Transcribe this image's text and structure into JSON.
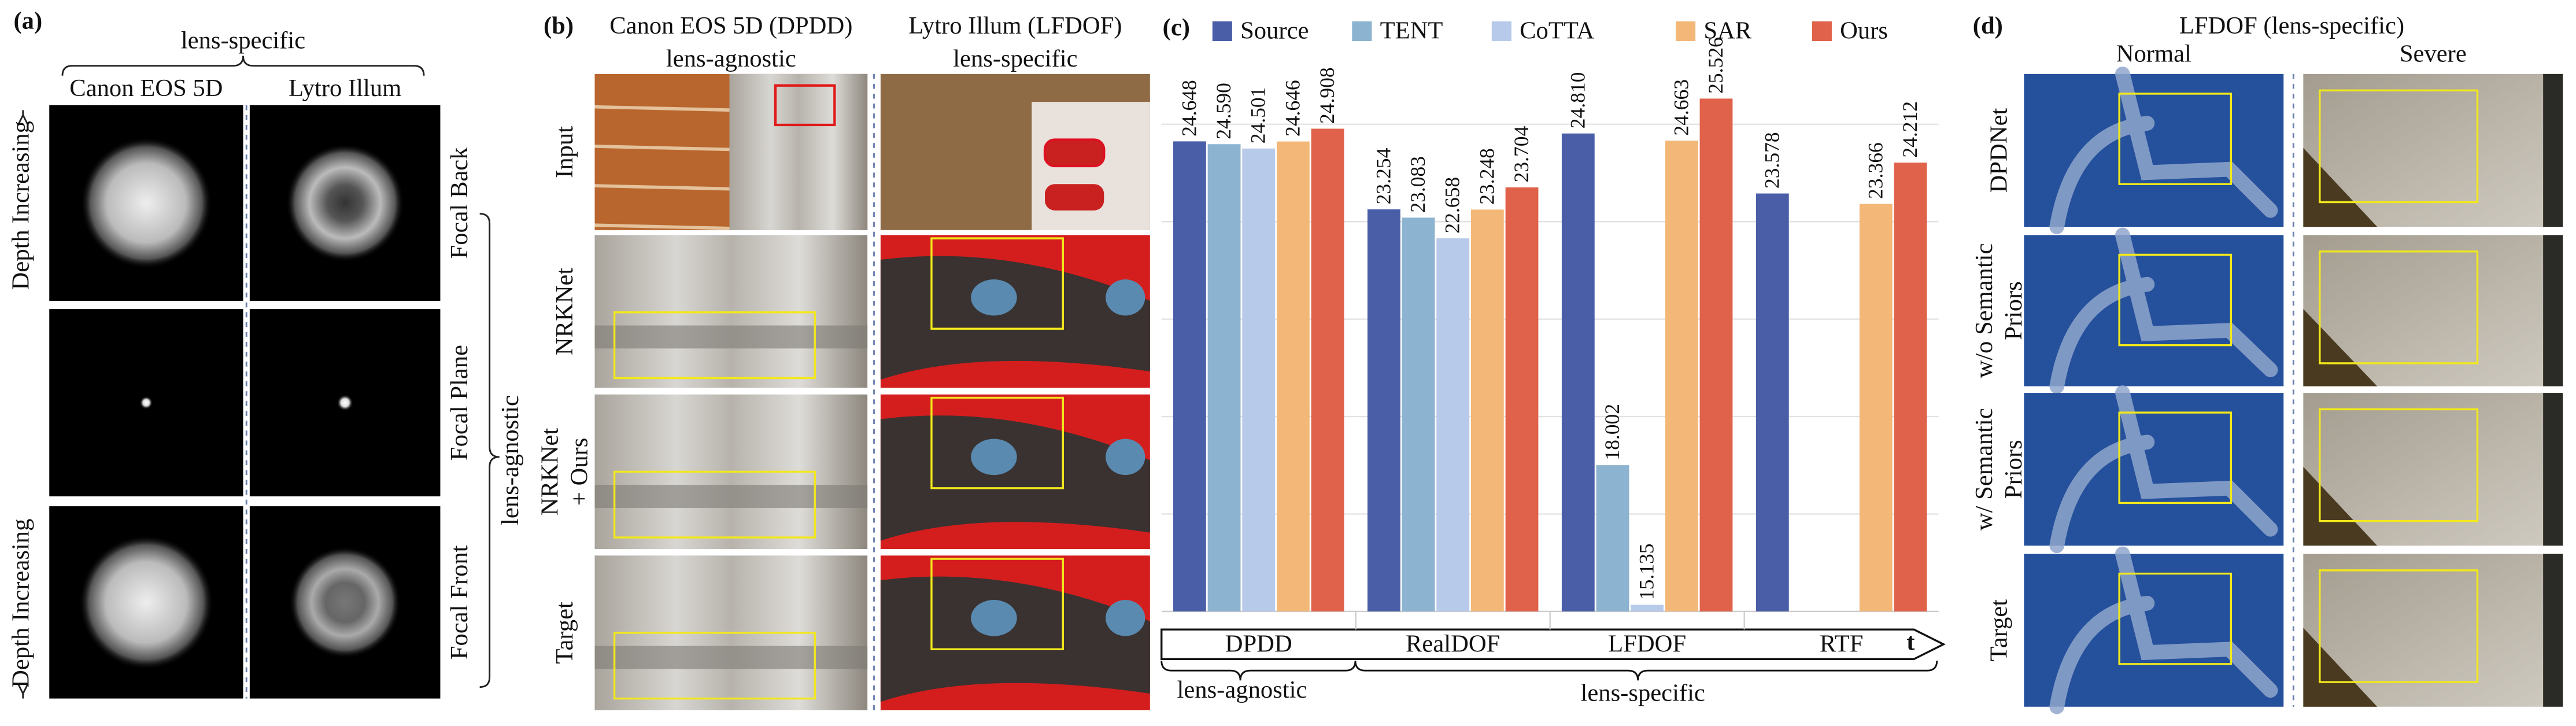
{
  "panel_a": {
    "label": "(a)",
    "header": "lens-specific",
    "columns": [
      "Canon EOS 5D",
      "Lytro Illum"
    ],
    "left_labels": [
      "Depth Increasing",
      "Depth Increasing"
    ],
    "row_labels": [
      "Focal Back",
      "Focal Plane",
      "Focal Front"
    ],
    "side_label": "lens-agnostic"
  },
  "panel_b": {
    "label": "(b)",
    "columns": [
      {
        "title": "Canon EOS 5D (DPDD)",
        "subtitle": "lens-agnostic"
      },
      {
        "title": "Lytro Illum (LFDOF)",
        "subtitle": "lens-specific"
      }
    ],
    "rows": [
      [
        "Input"
      ],
      [
        "NRKNet"
      ],
      [
        "NRKNet",
        "+ Ours"
      ],
      [
        "Target"
      ]
    ]
  },
  "chart_data": {
    "type": "bar",
    "label": "(c)",
    "categories": [
      "DPDD",
      "RealDOF",
      "LFDOF",
      "RTF"
    ],
    "x_label": "t",
    "annotations": [
      "lens-agnostic",
      "lens-specific"
    ],
    "ylim": [
      15,
      26.2
    ],
    "yticks": [
      17,
      19,
      21,
      23,
      25
    ],
    "grid": true,
    "series": [
      {
        "name": "Source",
        "color": "#4a5ea8",
        "values": [
          24.648,
          23.254,
          24.81,
          23.578
        ],
        "value_labels": [
          "24.648",
          "23.254",
          "24.810",
          "23.578"
        ]
      },
      {
        "name": "TENT",
        "color": "#8cb3cf",
        "values": [
          24.59,
          23.083,
          18.002,
          null
        ],
        "value_labels": [
          "24.590",
          "23.083",
          "18.002",
          null
        ]
      },
      {
        "name": "CoTTA",
        "color": "#b8caea",
        "values": [
          24.501,
          22.658,
          15.135,
          null
        ],
        "value_labels": [
          "24.501",
          "22.658",
          "15.135",
          null
        ]
      },
      {
        "name": "SAR",
        "color": "#f3b878",
        "values": [
          24.646,
          23.248,
          24.663,
          23.366
        ],
        "value_labels": [
          "24.646",
          "23.248",
          "24.663",
          "23.366"
        ]
      },
      {
        "name": "Ours",
        "color": "#e0624a",
        "values": [
          24.908,
          23.704,
          25.526,
          24.212
        ],
        "value_labels": [
          "24.908",
          "23.704",
          "25.526",
          "24.212"
        ]
      }
    ]
  },
  "panel_d": {
    "label": "(d)",
    "title": "LFDOF (lens-specific)",
    "columns": [
      "Normal",
      "Severe"
    ],
    "rows": [
      [
        "DPDNet"
      ],
      [
        "w/o Semantic",
        "Priors"
      ],
      [
        "w/ Semantic",
        "Priors"
      ],
      [
        "Target"
      ]
    ]
  }
}
